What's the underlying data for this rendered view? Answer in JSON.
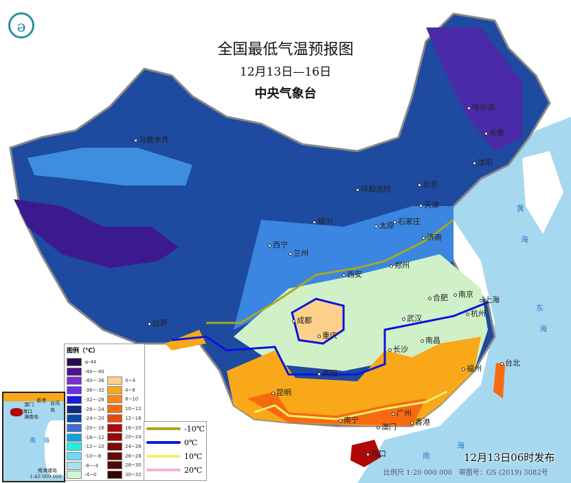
{
  "header": {
    "title": "全国最低气温预报图",
    "date_range": "12月13日—16日",
    "agency": "中央气象台"
  },
  "logo": {
    "icon": "cma-logo-icon",
    "color": "#2a8fa0"
  },
  "legend": {
    "title": "图例（℃）",
    "cold": [
      {
        "label": "≤-44",
        "color": "#2a0a52"
      },
      {
        "label": "-44~-40",
        "color": "#4b1390"
      },
      {
        "label": "-40~-36",
        "color": "#7a2fd0"
      },
      {
        "label": "-36~-32",
        "color": "#6a2df0"
      },
      {
        "label": "-32~-28",
        "color": "#1a1ae0"
      },
      {
        "label": "-28~-24",
        "color": "#0d2a7a"
      },
      {
        "label": "-24~-20",
        "color": "#0a4aa8"
      },
      {
        "label": "-20~-16",
        "color": "#3a70d0"
      },
      {
        "label": "-16~-12",
        "color": "#18a0e0"
      },
      {
        "label": "-12~-10",
        "color": "#20f0e0"
      },
      {
        "label": "-10~-8",
        "color": "#70d8f8"
      },
      {
        "label": "-8~-4",
        "color": "#a8e0f0"
      },
      {
        "label": "-4~0",
        "color": "#d0f8d0"
      }
    ],
    "warm": [
      {
        "label": "0~4",
        "color": "#fcd08a"
      },
      {
        "label": "4~8",
        "color": "#f8a818"
      },
      {
        "label": "8~10",
        "color": "#f88818"
      },
      {
        "label": "10~12",
        "color": "#f86a10"
      },
      {
        "label": "12~16",
        "color": "#e04a10"
      },
      {
        "label": "16~20",
        "color": "#b00808"
      },
      {
        "label": "20~24",
        "color": "#980808"
      },
      {
        "label": "24~26",
        "color": "#800808"
      },
      {
        "label": "26~28",
        "color": "#680808"
      },
      {
        "label": "28~30",
        "color": "#500808"
      },
      {
        "label": "30~32",
        "color": "#380404"
      }
    ],
    "isotherms": [
      {
        "label": "-10℃",
        "color": "#a8a820"
      },
      {
        "label": "0℃",
        "color": "#0a14e0"
      },
      {
        "label": "10℃",
        "color": "#f0f070"
      },
      {
        "label": "20℃",
        "color": "#f8b0d8"
      }
    ]
  },
  "cities": [
    "乌鲁木齐",
    "哈尔滨",
    "长春",
    "沈阳",
    "呼和浩特",
    "北京",
    "天津",
    "银川",
    "太原",
    "石家庄",
    "西宁",
    "兰州",
    "济南",
    "西安",
    "郑州",
    "合肥",
    "南京",
    "上海",
    "拉萨",
    "成都",
    "武汉",
    "杭州",
    "重庆",
    "南昌",
    "长沙",
    "台北",
    "福州",
    "贵阳",
    "昆明",
    "南宁",
    "广州",
    "香港",
    "澳门",
    "海口"
  ],
  "seas": [
    "黄",
    "海",
    "东",
    "海",
    "南",
    "海"
  ],
  "inset": {
    "labels": [
      "香港",
      "澳门",
      "台湾岛",
      "海口",
      "海南岛",
      "南",
      "海",
      "南海诸岛"
    ],
    "scale": "1:40 000 000"
  },
  "footer": {
    "published": "12月13日06时发布",
    "scale": "比例尺 1:20 000 000",
    "review_no": "审图号：GS (2019) 3082号"
  }
}
